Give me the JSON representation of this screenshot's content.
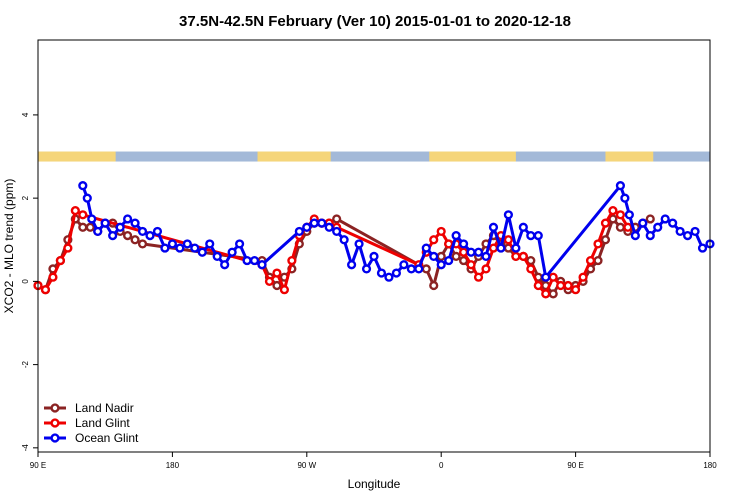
{
  "chart_data": {
    "type": "line",
    "title": "37.5N-42.5N February (Ver 10)   2015-01-01 to 2020-12-18",
    "xlabel": "Longitude",
    "ylabel": "XCO2 - MLO trend (ppm)",
    "x_ticks": [
      {
        "value": 0,
        "label": "90 E"
      },
      {
        "value": 90,
        "label": "180"
      },
      {
        "value": 180,
        "label": "90 W"
      },
      {
        "value": 270,
        "label": "0"
      },
      {
        "value": 360,
        "label": "90 E"
      },
      {
        "value": 450,
        "label": "180"
      }
    ],
    "y_ticks": [
      {
        "value": -4,
        "label": "-4"
      },
      {
        "value": -2,
        "label": "-2"
      },
      {
        "value": 0,
        "label": "0"
      },
      {
        "value": 2,
        "label": "2"
      },
      {
        "value": 4,
        "label": "4"
      }
    ],
    "xlim": [
      0,
      450
    ],
    "ylim": [
      -4.1,
      5.8
    ],
    "land_mask": {
      "y": 3.0,
      "ocean_color": "#a3b9d8",
      "land_color": "#f5d57a",
      "land_ranges": [
        [
          0,
          52
        ],
        [
          147,
          196
        ],
        [
          262,
          320
        ],
        [
          380,
          412
        ]
      ]
    },
    "legend": {
      "position": "bottom-left"
    },
    "series": [
      {
        "name": "Land Nadir",
        "color": "#8b2323",
        "x": [
          0,
          5,
          10,
          15,
          20,
          25,
          30,
          35,
          40,
          45,
          50,
          55,
          60,
          65,
          70,
          150,
          155,
          160,
          165,
          170,
          175,
          180,
          185,
          190,
          195,
          200,
          260,
          265,
          270,
          275,
          280,
          285,
          290,
          295,
          300,
          305,
          310,
          315,
          320,
          325,
          330,
          335,
          340,
          345,
          350,
          355,
          360,
          365,
          370,
          375,
          380,
          385,
          390,
          395,
          400,
          405,
          410
        ],
        "y": [
          -0.1,
          -0.2,
          0.3,
          0.5,
          1.0,
          1.5,
          1.3,
          1.3,
          1.2,
          1.4,
          1.4,
          1.2,
          1.1,
          1.0,
          0.9,
          0.5,
          0.1,
          -0.1,
          0.1,
          0.3,
          0.9,
          1.2,
          1.4,
          1.4,
          1.4,
          1.5,
          0.3,
          -0.1,
          0.6,
          0.9,
          0.6,
          0.5,
          0.3,
          0.6,
          0.9,
          1.1,
          0.9,
          0.8,
          0.6,
          0.6,
          0.5,
          0.1,
          -0.1,
          -0.3,
          0.0,
          -0.2,
          -0.1,
          0.0,
          0.3,
          0.5,
          1.0,
          1.5,
          1.3,
          1.2,
          1.3,
          1.4,
          1.5
        ]
      },
      {
        "name": "Land Glint",
        "color": "#ee0000",
        "x": [
          0,
          5,
          10,
          15,
          20,
          25,
          30,
          150,
          155,
          160,
          165,
          170,
          175,
          180,
          185,
          190,
          195,
          200,
          255,
          260,
          265,
          270,
          275,
          280,
          285,
          290,
          295,
          300,
          305,
          310,
          315,
          320,
          325,
          330,
          335,
          340,
          345,
          350,
          355,
          360,
          365,
          370,
          375,
          380,
          385,
          390,
          395
        ],
        "y": [
          -0.1,
          -0.2,
          0.1,
          0.5,
          0.8,
          1.7,
          1.6,
          0.4,
          0.0,
          0.2,
          -0.2,
          0.5,
          1.1,
          1.3,
          1.5,
          1.4,
          1.4,
          1.3,
          0.4,
          0.7,
          1.0,
          1.2,
          0.9,
          0.9,
          0.7,
          0.4,
          0.1,
          0.3,
          0.8,
          1.1,
          1.0,
          0.6,
          0.6,
          0.3,
          -0.1,
          -0.3,
          0.1,
          -0.1,
          -0.1,
          -0.2,
          0.1,
          0.5,
          0.9,
          1.4,
          1.7,
          1.6,
          1.3
        ]
      },
      {
        "name": "Ocean Glint",
        "color": "#0000ee",
        "x": [
          30,
          33,
          36,
          40,
          45,
          50,
          55,
          60,
          65,
          70,
          75,
          80,
          85,
          90,
          95,
          100,
          105,
          110,
          115,
          120,
          125,
          130,
          135,
          140,
          145,
          150,
          175,
          180,
          185,
          190,
          195,
          200,
          205,
          210,
          215,
          220,
          225,
          230,
          235,
          240,
          245,
          250,
          255,
          260,
          265,
          270,
          275,
          280,
          285,
          290,
          295,
          300,
          305,
          310,
          315,
          320,
          325,
          330,
          335,
          340,
          390,
          393,
          396,
          400,
          405,
          410,
          415,
          420,
          425,
          430,
          435,
          440,
          445,
          450
        ],
        "y": [
          2.3,
          2.0,
          1.5,
          1.2,
          1.4,
          1.1,
          1.3,
          1.5,
          1.4,
          1.2,
          1.1,
          1.2,
          0.8,
          0.9,
          0.8,
          0.9,
          0.8,
          0.7,
          0.9,
          0.6,
          0.4,
          0.7,
          0.9,
          0.5,
          0.5,
          0.4,
          1.2,
          1.3,
          1.4,
          1.4,
          1.3,
          1.2,
          1.0,
          0.4,
          0.9,
          0.3,
          0.6,
          0.2,
          0.1,
          0.2,
          0.4,
          0.3,
          0.3,
          0.8,
          0.6,
          0.4,
          0.5,
          1.1,
          0.9,
          0.7,
          0.7,
          0.6,
          1.3,
          0.8,
          1.6,
          0.8,
          1.3,
          1.1,
          1.1,
          0.1,
          2.3,
          2.0,
          1.6,
          1.1,
          1.4,
          1.1,
          1.3,
          1.5,
          1.4,
          1.2,
          1.1,
          1.2,
          0.8,
          0.9
        ]
      }
    ]
  }
}
